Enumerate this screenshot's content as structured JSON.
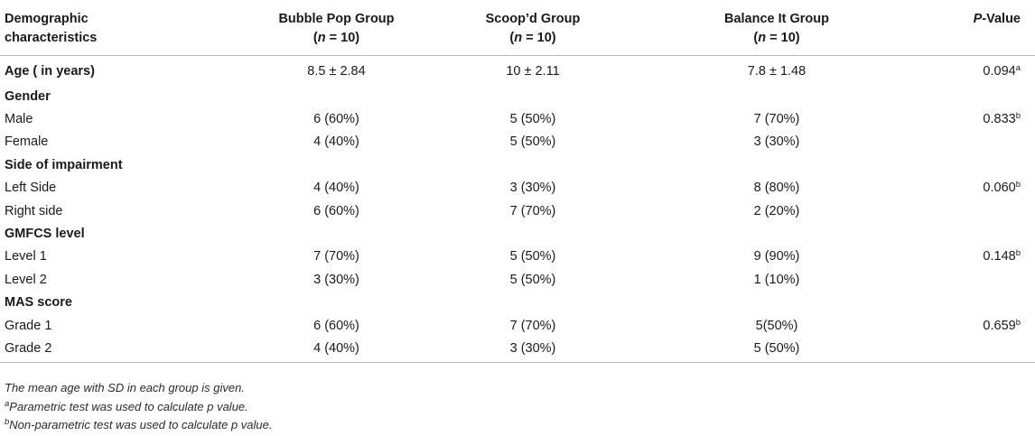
{
  "header": {
    "col1_line1": "Demographic",
    "col1_line2": "characteristics",
    "groups": [
      {
        "name": "Bubble Pop Group",
        "n_prefix": "(",
        "n_var": "n",
        "n_suffix": " = 10)"
      },
      {
        "name": "Scoop’d Group",
        "n_prefix": "(",
        "n_var": "n",
        "n_suffix": " = 10)"
      },
      {
        "name": "Balance It Group",
        "n_prefix": "(",
        "n_var": "n",
        "n_suffix": " = 10)"
      }
    ],
    "pvalue_italic": "P",
    "pvalue_rest": "-Value"
  },
  "rows": {
    "age": {
      "label": "Age ( in years)",
      "v1": "8.5 ± 2.84",
      "v2": "10 ± 2.11",
      "v3": "7.8 ± 1.48",
      "p": "0.094",
      "sup": "a"
    },
    "gender": {
      "label": "Gender"
    },
    "male": {
      "label": "Male",
      "v1": "6 (60%)",
      "v2": "5 (50%)",
      "v3": "7 (70%)",
      "p": "0.833",
      "sup": "b"
    },
    "female": {
      "label": "Female",
      "v1": "4 (40%)",
      "v2": "5 (50%)",
      "v3": "3 (30%)"
    },
    "side": {
      "label": "Side of impairment"
    },
    "left": {
      "label": "Left Side",
      "v1": "4 (40%)",
      "v2": "3 (30%)",
      "v3": "8 (80%)",
      "p": "0.060",
      "sup": "b"
    },
    "right": {
      "label": "Right side",
      "v1": "6 (60%)",
      "v2": "7 (70%)",
      "v3": "2 (20%)"
    },
    "gmfcs": {
      "label": "GMFCS level"
    },
    "level1": {
      "label": "Level 1",
      "v1": "7 (70%)",
      "v2": "5 (50%)",
      "v3": "9 (90%)",
      "p": "0.148",
      "sup": "b"
    },
    "level2": {
      "label": "Level 2",
      "v1": "3 (30%)",
      "v2": "5 (50%)",
      "v3": "1 (10%)"
    },
    "mas": {
      "label": "MAS score"
    },
    "grade1": {
      "label": "Grade 1",
      "v1": "6 (60%)",
      "v2": "7 (70%)",
      "v3": "5(50%)",
      "p": "0.659",
      "sup": "b"
    },
    "grade2": {
      "label": "Grade 2",
      "v1": "4 (40%)",
      "v2": "3 (30%)",
      "v3": "5 (50%)"
    }
  },
  "notes": {
    "n1": "The mean age with SD in each group is given.",
    "n2_sup": "a",
    "n2": "Parametric test was used to calculate p value.",
    "n3_sup": "b",
    "n3": "Non-parametric test was used to calculate p value."
  }
}
